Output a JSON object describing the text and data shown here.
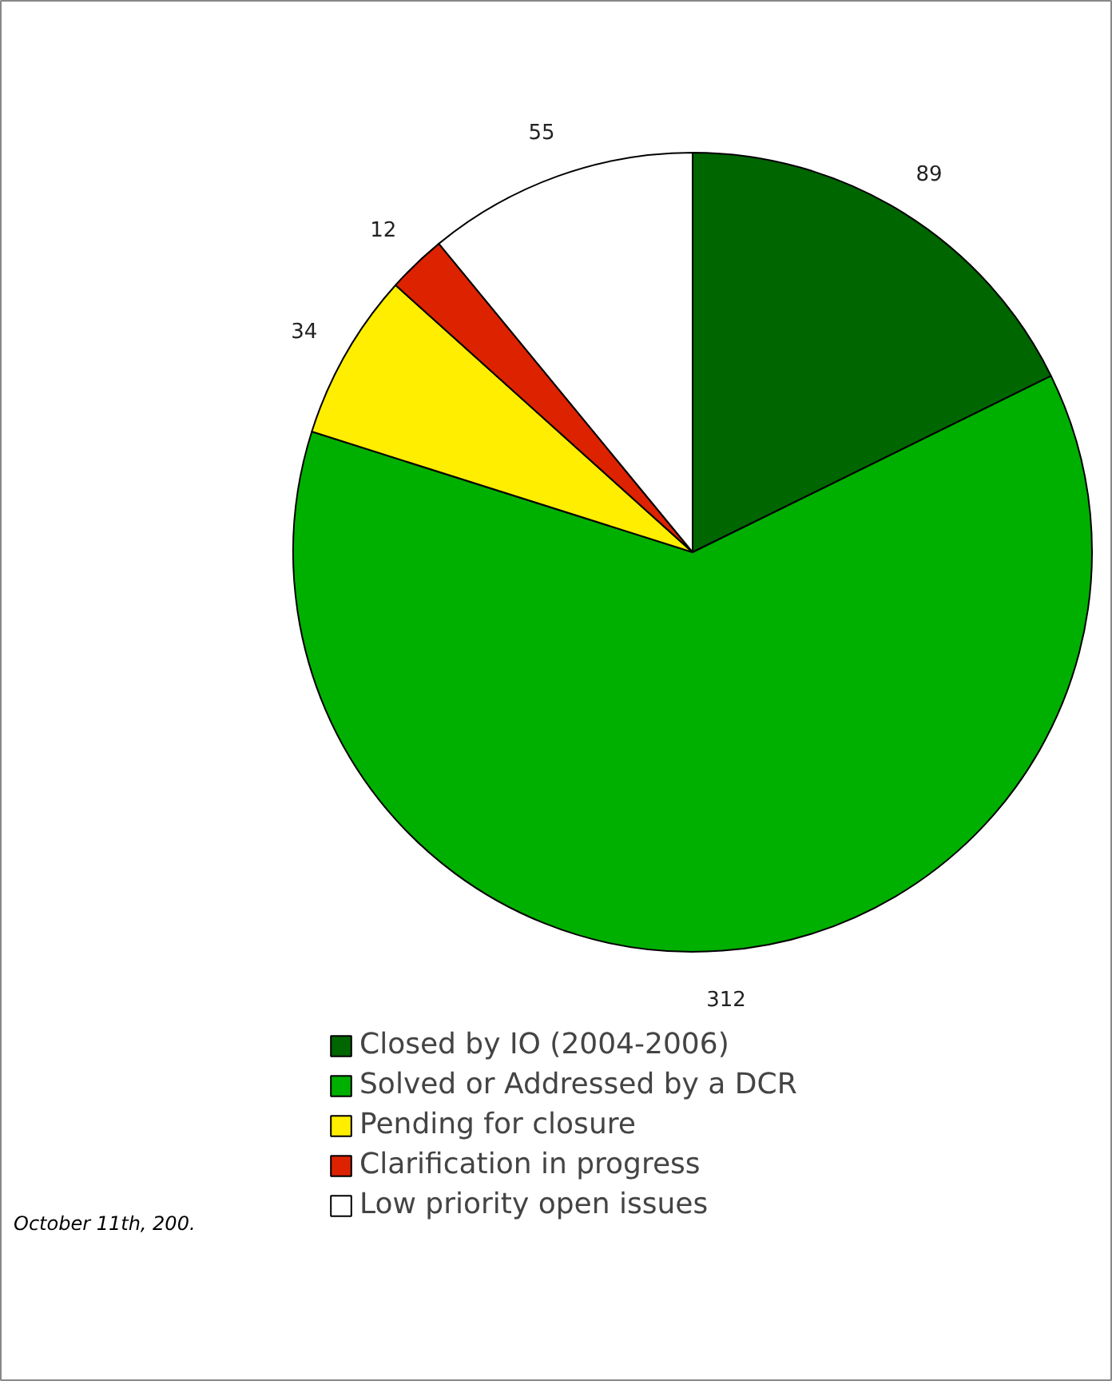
{
  "chart_data": {
    "type": "pie",
    "categories": [
      "Closed by IO (2004-2006)",
      "Solved or Addressed by a DCR",
      "Pending for closure",
      "Clarification in progress",
      "Low priority open issues"
    ],
    "values": [
      89,
      312,
      34,
      12,
      55
    ],
    "colors": [
      "#006600",
      "#00b000",
      "#ffee00",
      "#dd2200",
      "#ffffff"
    ],
    "data_labels": true,
    "legend": "bottom",
    "annotations": [
      "October 11th, 200."
    ]
  }
}
